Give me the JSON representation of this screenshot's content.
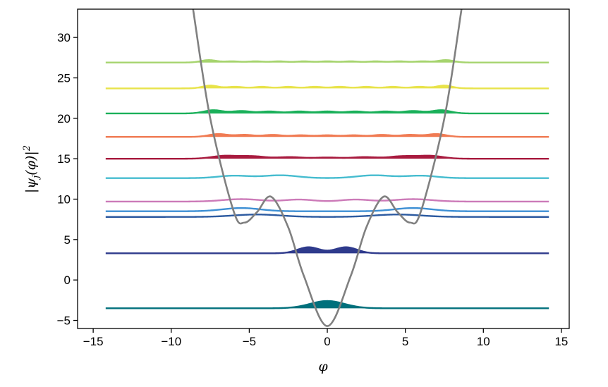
{
  "chart_data": {
    "type": "line",
    "title": "",
    "xlabel": "φ",
    "ylabel": "|ψ_j(φ)|²",
    "xlim": [
      -16,
      15.5
    ],
    "ylim": [
      -6,
      33.5
    ],
    "xticks": [
      -15,
      -10,
      -5,
      0,
      5,
      10,
      15
    ],
    "xtick_labels": [
      "−15",
      "−10",
      "−5",
      "0",
      "5",
      "10",
      "15"
    ],
    "yticks": [
      -5,
      0,
      5,
      10,
      15,
      20,
      25,
      30
    ],
    "ytick_labels": [
      "−5",
      "0",
      "5",
      "10",
      "15",
      "20",
      "25",
      "30"
    ],
    "grid": false,
    "legend": "none",
    "potential": {
      "color": "#808080",
      "description_values": {
        "x_samples": [
          -8.6,
          -7.5,
          -6.0,
          -5.3,
          -4.5,
          -3.6,
          -2.5,
          -1.5,
          0.0,
          1.5,
          2.5,
          3.6,
          4.5,
          5.3,
          6.0,
          7.5,
          8.6
        ],
        "y_samples": [
          33.5,
          20.0,
          8.5,
          7.1,
          8.4,
          10.3,
          6.5,
          0.5,
          -5.7,
          0.5,
          6.5,
          10.3,
          8.4,
          7.1,
          8.5,
          20.0,
          33.5
        ]
      }
    },
    "series": [
      {
        "baseline": -3.5,
        "color": "#00707c",
        "filled": true,
        "x_range": [
          -14.2,
          14.2
        ],
        "peaks": [
          {
            "center": 0.0,
            "height": 0.9,
            "width": 1.1
          }
        ]
      },
      {
        "baseline": 3.3,
        "color": "#2e3a8c",
        "filled": true,
        "x_range": [
          -14.2,
          14.2
        ],
        "peaks": [
          {
            "center": -1.2,
            "height": 0.75,
            "width": 0.7
          },
          {
            "center": 1.2,
            "height": 0.75,
            "width": 0.7
          }
        ]
      },
      {
        "baseline": 7.8,
        "color": "#2c5aa0",
        "filled": false,
        "x_range": [
          -14.2,
          14.2
        ],
        "peaks": [
          {
            "center": -4.5,
            "height": 0.3,
            "width": 1.5
          },
          {
            "center": 4.5,
            "height": 0.3,
            "width": 1.5
          }
        ]
      },
      {
        "baseline": 8.5,
        "color": "#3d8fd4",
        "filled": false,
        "x_range": [
          -14.2,
          14.2
        ],
        "peaks": [
          {
            "center": -5.5,
            "height": 0.4,
            "width": 1.2
          },
          {
            "center": 5.5,
            "height": 0.4,
            "width": 1.2
          }
        ]
      },
      {
        "baseline": 9.7,
        "color": "#cc7ab8",
        "filled": false,
        "x_range": [
          -14.2,
          14.2
        ],
        "peaks": [
          {
            "center": -5.5,
            "height": 0.3,
            "width": 1.2
          },
          {
            "center": -1.8,
            "height": 0.25,
            "width": 0.9
          },
          {
            "center": 1.8,
            "height": 0.25,
            "width": 0.9
          },
          {
            "center": 5.5,
            "height": 0.3,
            "width": 1.2
          }
        ]
      },
      {
        "baseline": 12.6,
        "color": "#45bccf",
        "filled": false,
        "x_range": [
          -14.2,
          14.2
        ],
        "peaks": [
          {
            "center": -6.0,
            "height": 0.3,
            "width": 1.0
          },
          {
            "center": -3.0,
            "height": 0.35,
            "width": 1.1
          },
          {
            "center": 3.0,
            "height": 0.35,
            "width": 1.1
          },
          {
            "center": 6.0,
            "height": 0.3,
            "width": 1.0
          }
        ]
      },
      {
        "baseline": 15.0,
        "color": "#a81a3e",
        "filled": true,
        "x_range": [
          -14.2,
          14.2
        ],
        "peaks": [
          {
            "center": -6.6,
            "height": 0.35,
            "width": 0.8
          },
          {
            "center": -4.8,
            "height": 0.3,
            "width": 0.8
          },
          {
            "center": -2.4,
            "height": 0.2,
            "width": 0.8
          },
          {
            "center": 0.0,
            "height": 0.15,
            "width": 0.8
          },
          {
            "center": 2.4,
            "height": 0.2,
            "width": 0.8
          },
          {
            "center": 4.8,
            "height": 0.3,
            "width": 0.8
          },
          {
            "center": 6.6,
            "height": 0.35,
            "width": 0.8
          }
        ]
      },
      {
        "baseline": 17.7,
        "color": "#f07b53",
        "filled": true,
        "x_range": [
          -14.2,
          14.2
        ],
        "peaks": [
          {
            "center": -7.0,
            "height": 0.35,
            "width": 0.6
          },
          {
            "center": -5.3,
            "height": 0.25,
            "width": 0.6
          },
          {
            "center": -3.5,
            "height": 0.25,
            "width": 0.6
          },
          {
            "center": -1.7,
            "height": 0.2,
            "width": 0.6
          },
          {
            "center": 0.0,
            "height": 0.2,
            "width": 0.6
          },
          {
            "center": 1.7,
            "height": 0.2,
            "width": 0.6
          },
          {
            "center": 3.5,
            "height": 0.25,
            "width": 0.6
          },
          {
            "center": 5.3,
            "height": 0.25,
            "width": 0.6
          },
          {
            "center": 7.0,
            "height": 0.35,
            "width": 0.6
          }
        ]
      },
      {
        "baseline": 20.6,
        "color": "#1ab05a",
        "filled": true,
        "x_range": [
          -14.2,
          14.2
        ],
        "peaks": [
          {
            "center": -7.3,
            "height": 0.4,
            "width": 0.6
          },
          {
            "center": -5.5,
            "height": 0.3,
            "width": 0.6
          },
          {
            "center": -3.7,
            "height": 0.25,
            "width": 0.6
          },
          {
            "center": -1.8,
            "height": 0.25,
            "width": 0.6
          },
          {
            "center": 0.0,
            "height": 0.25,
            "width": 0.6
          },
          {
            "center": 1.8,
            "height": 0.25,
            "width": 0.6
          },
          {
            "center": 3.7,
            "height": 0.25,
            "width": 0.6
          },
          {
            "center": 5.5,
            "height": 0.3,
            "width": 0.6
          },
          {
            "center": 7.3,
            "height": 0.4,
            "width": 0.6
          }
        ]
      },
      {
        "baseline": 23.7,
        "color": "#e8e34a",
        "filled": true,
        "x_range": [
          -14.2,
          14.2
        ],
        "peaks": [
          {
            "center": -7.5,
            "height": 0.35,
            "width": 0.5
          },
          {
            "center": -5.9,
            "height": 0.2,
            "width": 0.5
          },
          {
            "center": -4.2,
            "height": 0.2,
            "width": 0.5
          },
          {
            "center": -2.5,
            "height": 0.2,
            "width": 0.5
          },
          {
            "center": -0.8,
            "height": 0.2,
            "width": 0.5
          },
          {
            "center": 0.8,
            "height": 0.2,
            "width": 0.5
          },
          {
            "center": 2.5,
            "height": 0.2,
            "width": 0.5
          },
          {
            "center": 4.2,
            "height": 0.2,
            "width": 0.5
          },
          {
            "center": 5.9,
            "height": 0.2,
            "width": 0.5
          },
          {
            "center": 7.5,
            "height": 0.35,
            "width": 0.5
          }
        ]
      },
      {
        "baseline": 26.9,
        "color": "#a6d46e",
        "filled": true,
        "x_range": [
          -14.2,
          14.2
        ],
        "peaks": [
          {
            "center": -7.6,
            "height": 0.3,
            "width": 0.5
          },
          {
            "center": -6.1,
            "height": 0.15,
            "width": 0.5
          },
          {
            "center": -4.6,
            "height": 0.15,
            "width": 0.5
          },
          {
            "center": -3.1,
            "height": 0.15,
            "width": 0.5
          },
          {
            "center": -1.5,
            "height": 0.15,
            "width": 0.5
          },
          {
            "center": 0.0,
            "height": 0.15,
            "width": 0.5
          },
          {
            "center": 1.5,
            "height": 0.15,
            "width": 0.5
          },
          {
            "center": 3.1,
            "height": 0.15,
            "width": 0.5
          },
          {
            "center": 4.6,
            "height": 0.15,
            "width": 0.5
          },
          {
            "center": 6.1,
            "height": 0.15,
            "width": 0.5
          },
          {
            "center": 7.6,
            "height": 0.3,
            "width": 0.5
          }
        ]
      }
    ]
  }
}
